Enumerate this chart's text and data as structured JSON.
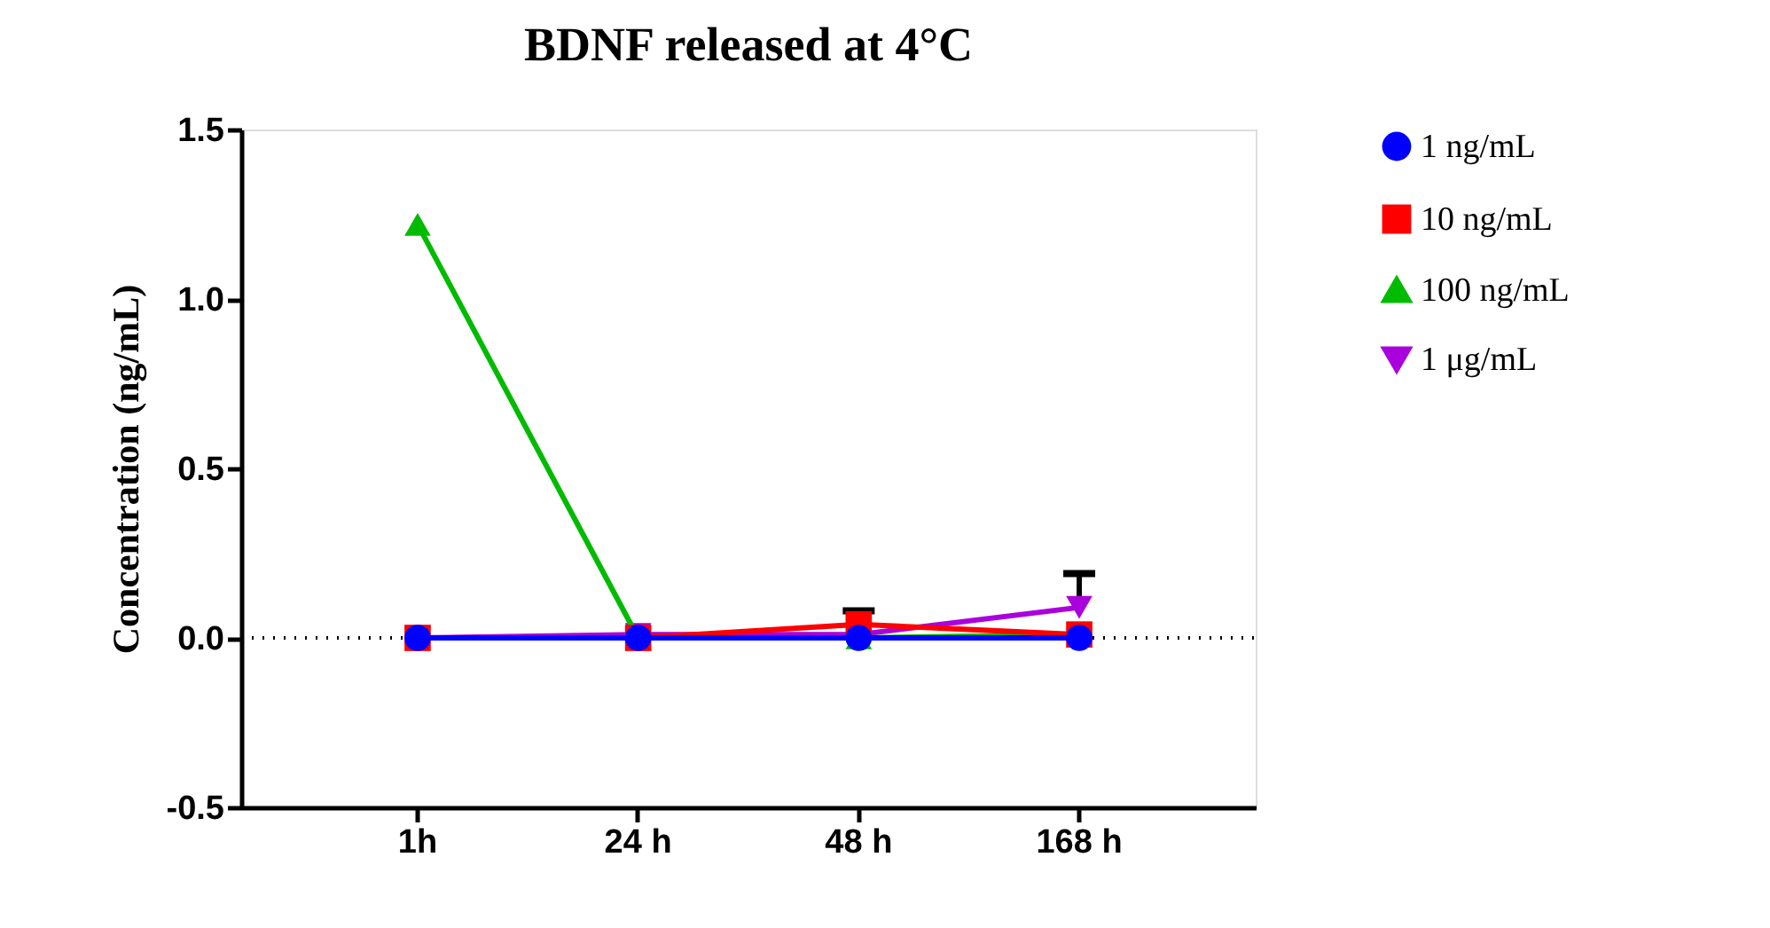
{
  "chart_data": {
    "type": "line",
    "title": "BDNF released at 4°C",
    "ylabel": "Concentration (ng/mL)",
    "categories": [
      "1h",
      "24 h",
      "48 h",
      "168 h"
    ],
    "series": [
      {
        "name": "1 ng/mL",
        "color": "#0000ff",
        "marker": "circle",
        "values": [
          0,
          0,
          0,
          0
        ]
      },
      {
        "name": "10 ng/mL",
        "color": "#ff0000",
        "marker": "square",
        "values": [
          0,
          0,
          0.04,
          0.01
        ],
        "errors": [
          null,
          null,
          [
            0.04,
            0.08
          ],
          null
        ]
      },
      {
        "name": "100 ng/mL",
        "color": "#00bb00",
        "marker": "triangle",
        "values": [
          1.22,
          0,
          0,
          0.01
        ]
      },
      {
        "name": "1 μg/mL",
        "color": "#aa00dd",
        "marker": "triangle-down",
        "values": [
          0,
          0.01,
          0.01,
          0.09
        ],
        "errors": [
          null,
          null,
          null,
          [
            0.09,
            0.19
          ]
        ]
      }
    ],
    "ylim": [
      -0.5,
      1.5
    ],
    "yticks": [
      {
        "value": -0.5,
        "label": "-0.5"
      },
      {
        "value": 0,
        "label": "0.0"
      },
      {
        "value": 0.5,
        "label": "0.5"
      },
      {
        "value": 1,
        "label": "1.0"
      },
      {
        "value": 1.5,
        "label": "1.5"
      }
    ],
    "ref_lines": [
      {
        "axis": "y",
        "value": 0,
        "label": null,
        "color": "#000000",
        "line_style": "dotted"
      }
    ],
    "grid": false,
    "legend": "top right"
  }
}
